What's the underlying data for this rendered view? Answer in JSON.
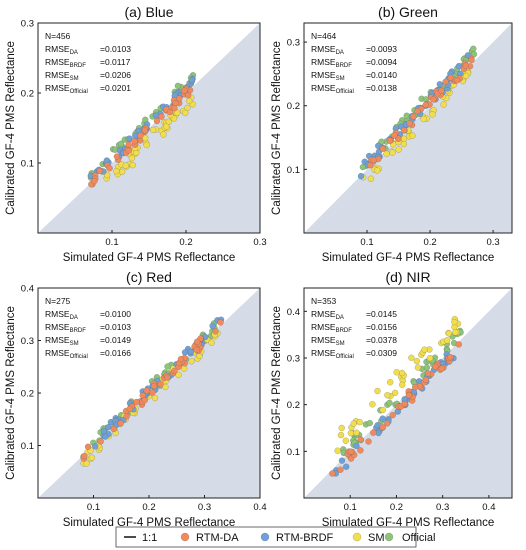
{
  "figure_legend": {
    "items": [
      {
        "label": "1:1",
        "marker": "line",
        "color": "#000000"
      },
      {
        "label": "RTM-DA",
        "marker": "dot",
        "color": "#f08a5d"
      },
      {
        "label": "RTM-BRDF",
        "marker": "dot",
        "color": "#6fa0d6"
      },
      {
        "label": "SM",
        "marker": "dot",
        "color": "#f2de4b"
      },
      {
        "label": "Official",
        "marker": "dot",
        "color": "#8cc47a"
      }
    ]
  },
  "colors": {
    "triangle_fill": "#d5dce8",
    "RTM-DA": "#f08a5d",
    "RTM-BRDF": "#6fa0d6",
    "SM": "#f2de4b",
    "Official": "#8cc47a"
  },
  "chart_data": [
    {
      "type": "scatter",
      "title": "(a) Blue",
      "xlabel": "Simulated GF-4 PMS Reflectance",
      "ylabel": "Calibrated GF-4 PMS Reflectance",
      "xlim": [
        0,
        0.3
      ],
      "ylim": [
        0,
        0.3
      ],
      "xticks": [
        0.1,
        0.2,
        0.3
      ],
      "yticks": [
        0.1,
        0.2,
        0.3
      ],
      "x_range": [
        0.07,
        0.21
      ],
      "stats": [
        {
          "label": "N=456"
        },
        {
          "label": "RMSE",
          "sub": "DA",
          "value": "=0.0103"
        },
        {
          "label": "RMSE",
          "sub": "BRDF",
          "value": "=0.0117"
        },
        {
          "label": "RMSE",
          "sub": "SM",
          "value": "=0.0206"
        },
        {
          "label": "RMSE",
          "sub": "Official",
          "value": "=0.0201"
        }
      ],
      "series": [
        {
          "name": "RTM-DA",
          "offset": 0.0
        },
        {
          "name": "RTM-BRDF",
          "offset": 0.006
        },
        {
          "name": "SM",
          "offset": -0.02
        },
        {
          "name": "Official",
          "offset": 0.012
        }
      ]
    },
    {
      "type": "scatter",
      "title": "(b) Green",
      "xlabel": "Simulated GF-4 PMS Reflectance",
      "ylabel": "Calibrated GF-4 PMS Reflectance",
      "xlim": [
        0,
        0.33
      ],
      "ylim": [
        0,
        0.33
      ],
      "xticks": [
        0.1,
        0.2,
        0.3
      ],
      "yticks": [
        0.1,
        0.2,
        0.3
      ],
      "x_range": [
        0.09,
        0.27
      ],
      "stats": [
        {
          "label": "N=464"
        },
        {
          "label": "RMSE",
          "sub": "DA",
          "value": "=0.0093"
        },
        {
          "label": "RMSE",
          "sub": "BRDF",
          "value": "=0.0094"
        },
        {
          "label": "RMSE",
          "sub": "SM",
          "value": "=0.0140"
        },
        {
          "label": "RMSE",
          "sub": "Official",
          "value": "=0.0138"
        }
      ],
      "series": [
        {
          "name": "RTM-DA",
          "offset": 0.005
        },
        {
          "name": "RTM-BRDF",
          "offset": 0.01
        },
        {
          "name": "SM",
          "offset": -0.01
        },
        {
          "name": "Official",
          "offset": 0.012
        }
      ]
    },
    {
      "type": "scatter",
      "title": "(c) Red",
      "xlabel": "Simulated GF-4 PMS Reflectance",
      "ylabel": "Calibrated GF-4 PMS Reflectance",
      "xlim": [
        0,
        0.4
      ],
      "ylim": [
        0,
        0.4
      ],
      "xticks": [
        0.1,
        0.2,
        0.3,
        0.4
      ],
      "yticks": [
        0.1,
        0.2,
        0.3,
        0.4
      ],
      "x_range": [
        0.08,
        0.33
      ],
      "stats": [
        {
          "label": "N=275"
        },
        {
          "label": "RMSE",
          "sub": "DA",
          "value": "=0.0100"
        },
        {
          "label": "RMSE",
          "sub": "BRDF",
          "value": "=0.0103"
        },
        {
          "label": "RMSE",
          "sub": "SM",
          "value": "=0.0149"
        },
        {
          "label": "RMSE",
          "sub": "Official",
          "value": "=0.0166"
        }
      ],
      "series": [
        {
          "name": "RTM-DA",
          "offset": 0.0
        },
        {
          "name": "RTM-BRDF",
          "offset": 0.004
        },
        {
          "name": "SM",
          "offset": -0.01
        },
        {
          "name": "Official",
          "offset": 0.006
        }
      ]
    },
    {
      "type": "scatter",
      "title": "(d) NIR",
      "xlabel": "Simulated GF-4 PMS Reflectance",
      "ylabel": "Calibrated GF-4 PMS Reflectance",
      "xlim": [
        0,
        0.45
      ],
      "ylim": [
        0,
        0.45
      ],
      "xticks": [
        0.1,
        0.2,
        0.3,
        0.4
      ],
      "yticks": [
        0.1,
        0.2,
        0.3,
        0.4
      ],
      "x_range": [
        0.06,
        0.34
      ],
      "stats": [
        {
          "label": "N=353"
        },
        {
          "label": "RMSE",
          "sub": "DA",
          "value": "=0.0145"
        },
        {
          "label": "RMSE",
          "sub": "BRDF",
          "value": "=0.0156"
        },
        {
          "label": "RMSE",
          "sub": "SM",
          "value": "=0.0378"
        },
        {
          "label": "RMSE",
          "sub": "Official",
          "value": "=0.0309"
        }
      ],
      "series": [
        {
          "name": "RTM-DA",
          "offset": -0.01
        },
        {
          "name": "RTM-BRDF",
          "offset": -0.012
        },
        {
          "name": "SM",
          "offset": 0.045
        },
        {
          "name": "Official",
          "offset": 0.015
        }
      ]
    }
  ]
}
